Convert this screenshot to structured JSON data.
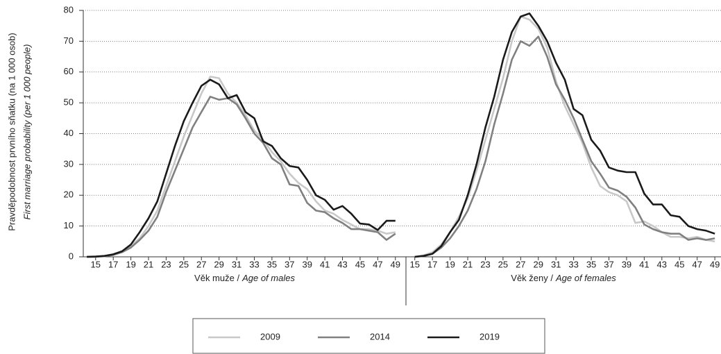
{
  "chart_data": [
    {
      "type": "line",
      "ylabel": "Pravděpodobnost prvního sňatku (na 1 000 osob)",
      "ylabel_en": "First marriage probability (per 1 000 people)",
      "xlabel": "Věk muže  /",
      "xlabel_en": "Age of males",
      "x": [
        14,
        15,
        16,
        17,
        18,
        19,
        20,
        21,
        22,
        23,
        24,
        25,
        26,
        27,
        28,
        29,
        30,
        31,
        32,
        33,
        34,
        35,
        36,
        37,
        38,
        39,
        40,
        41,
        42,
        43,
        44,
        45,
        46,
        47,
        48,
        49
      ],
      "xlim": [
        13.6,
        50.2
      ],
      "xticks": [
        15,
        17,
        19,
        21,
        23,
        25,
        27,
        29,
        31,
        33,
        35,
        37,
        39,
        41,
        43,
        45,
        47,
        49
      ],
      "ylim": [
        0,
        80
      ],
      "yticks": [
        0,
        10,
        20,
        30,
        40,
        50,
        60,
        70,
        80
      ],
      "grid": true,
      "series": [
        {
          "name": "2009",
          "color": "#c8c8c8",
          "values": [
            0,
            0,
            0.2,
            0.7,
            1.5,
            3.5,
            6,
            10,
            15,
            23,
            31,
            39,
            46,
            53,
            58.5,
            58,
            53,
            50,
            46,
            41,
            38,
            34,
            31,
            27,
            24,
            22,
            18,
            15,
            14,
            12,
            10.5,
            9,
            9,
            8.5,
            7.5,
            8
          ]
        },
        {
          "name": "2014",
          "color": "#808080",
          "values": [
            0,
            0,
            0.2,
            0.6,
            1.5,
            3,
            5.5,
            8.5,
            13,
            21,
            28,
            35,
            42,
            47,
            52,
            51,
            51.5,
            49.5,
            45,
            40,
            37,
            32,
            30,
            23.5,
            23,
            17.5,
            15,
            14.5,
            12.5,
            11,
            9,
            9,
            8.5,
            8,
            5.5,
            7.5
          ]
        },
        {
          "name": "2019",
          "color": "#1a1a1a",
          "values": [
            0,
            0.1,
            0.3,
            0.8,
            1.8,
            4,
            8,
            12.5,
            18,
            27,
            36,
            44,
            50,
            55.5,
            57.5,
            56,
            51.5,
            52.5,
            47,
            45,
            37.5,
            36,
            32,
            29.5,
            29,
            25,
            20,
            18.5,
            15.3,
            16.5,
            14,
            10.8,
            10.5,
            8.7,
            11.7,
            11.7
          ]
        }
      ]
    },
    {
      "type": "line",
      "xlabel": "Věk ženy /",
      "xlabel_en": "Age of females",
      "x": [
        15,
        16,
        17,
        18,
        19,
        20,
        21,
        22,
        23,
        24,
        25,
        26,
        27,
        28,
        29,
        30,
        31,
        32,
        33,
        34,
        35,
        36,
        37,
        38,
        39,
        40,
        41,
        42,
        43,
        44,
        45,
        46,
        47,
        48,
        49
      ],
      "xlim": [
        14,
        49.7
      ],
      "xticks": [
        15,
        17,
        19,
        21,
        23,
        25,
        27,
        29,
        31,
        33,
        35,
        37,
        39,
        41,
        43,
        45,
        47,
        49
      ],
      "ylim": [
        0,
        80
      ],
      "series": [
        {
          "color": "#c8c8c8",
          "values": [
            0,
            0.5,
            1.5,
            4,
            8,
            13,
            19,
            28,
            38,
            48,
            58,
            70,
            78,
            77,
            74,
            68,
            57,
            49,
            43,
            37,
            29,
            23,
            21,
            20,
            18,
            11,
            11.5,
            10,
            8,
            6.5,
            6.5,
            6,
            6.5,
            5.5,
            5
          ]
        },
        {
          "color": "#808080",
          "values": [
            0,
            0.3,
            1,
            3,
            6,
            10,
            15,
            22,
            31,
            43,
            53,
            64,
            70,
            68.5,
            71.5,
            65,
            56,
            51,
            45,
            38,
            31,
            27,
            22.5,
            21.5,
            19.5,
            16,
            10.5,
            9,
            8,
            7.5,
            7.5,
            5.5,
            6,
            5.5,
            6
          ]
        },
        {
          "color": "#1a1a1a",
          "values": [
            0,
            0.3,
            1,
            3.5,
            8,
            12,
            20,
            30,
            42,
            52,
            64,
            73,
            78,
            79,
            75,
            70,
            63,
            57.5,
            48,
            46,
            38,
            34.5,
            29,
            28,
            27.5,
            27.5,
            20.5,
            17,
            17,
            13.5,
            13,
            10,
            9,
            8.5,
            7.5
          ]
        }
      ]
    }
  ]
}
